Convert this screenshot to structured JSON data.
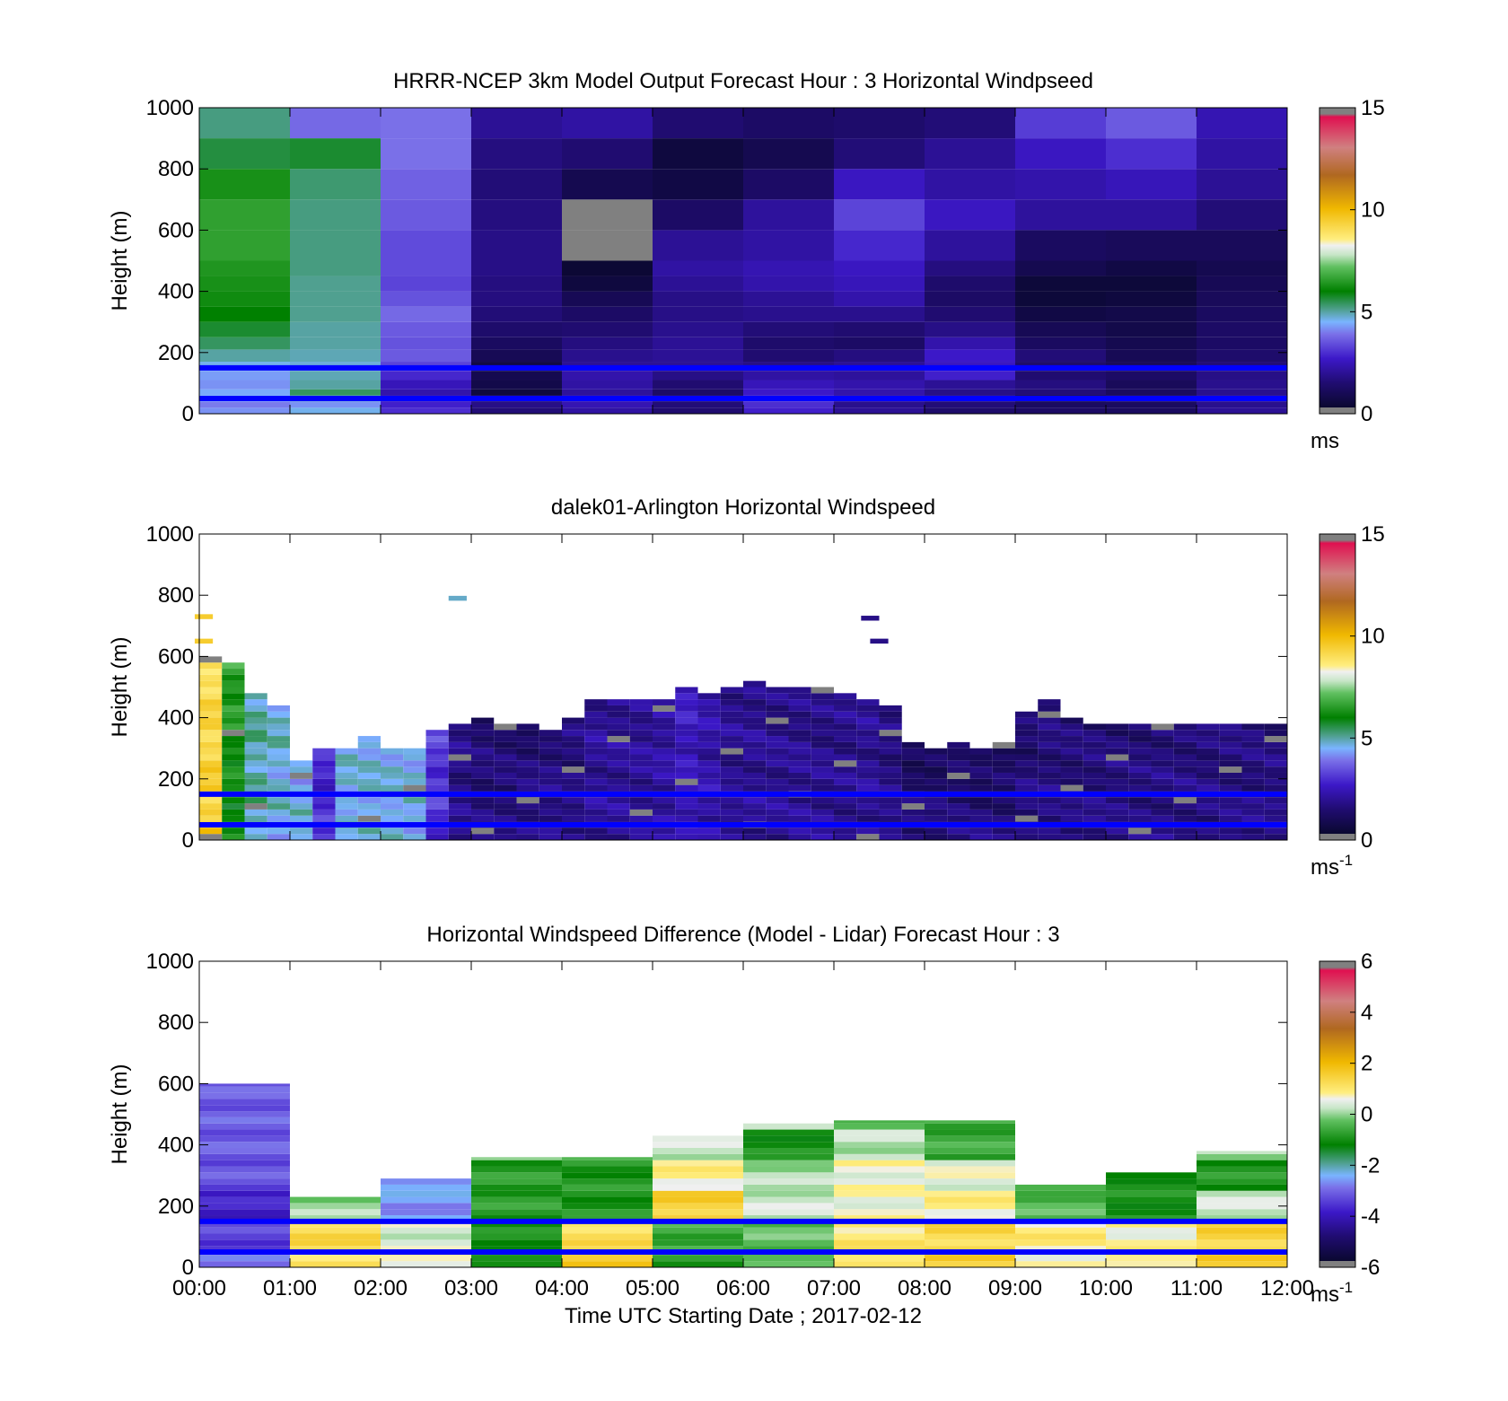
{
  "figure": {
    "xlabel": "Time UTC  Starting Date ; 2017-02-12",
    "x_tick_labels": [
      "00:00",
      "01:00",
      "02:00",
      "03:00",
      "04:00",
      "05:00",
      "06:00",
      "07:00",
      "08:00",
      "09:00",
      "10:00",
      "11:00",
      "12:00"
    ],
    "reference_lines_m": [
      150,
      50
    ],
    "reference_line_color": "#0000ff"
  },
  "chart_data": [
    {
      "type": "heatmap",
      "title": "HRRR-NCEP 3km Model Output   Forecast Hour : 3 Horizontal Windpseed",
      "ylabel": "Height (m)",
      "ylim": [
        0,
        1000
      ],
      "y_ticks": [
        0,
        200,
        400,
        600,
        800,
        1000
      ],
      "xlim": [
        0,
        12
      ],
      "colorbar": {
        "min": 0,
        "max": 15,
        "ticks": [
          0,
          5,
          10,
          15
        ],
        "unit": "ms",
        "unit_sup": ""
      },
      "x_bins_hours": [
        0,
        1,
        2,
        3,
        4,
        5,
        6,
        7,
        8,
        9,
        10,
        11,
        12
      ],
      "height_levels_m": [
        0,
        20,
        40,
        60,
        80,
        110,
        140,
        170,
        210,
        250,
        300,
        350,
        400,
        450,
        500,
        600,
        700,
        800,
        900,
        1000
      ],
      "values": [
        [
          4.2,
          4.6,
          3.0,
          1.6,
          2.2,
          1.5,
          2.8,
          2.0,
          1.4,
          1.3,
          1.2,
          2.0
        ],
        [
          4.0,
          4.2,
          2.8,
          1.8,
          2.4,
          1.6,
          3.0,
          1.9,
          1.6,
          1.2,
          1.2,
          1.9
        ],
        [
          4.5,
          4.8,
          2.4,
          1.2,
          2.3,
          1.4,
          3.1,
          2.2,
          1.9,
          0.4,
          1.3,
          2.0
        ],
        [
          4.4,
          5.4,
          2.3,
          0.6,
          2.1,
          1.3,
          2.7,
          2.3,
          1.8,
          1.6,
          1.2,
          1.9
        ],
        [
          4.2,
          5.0,
          2.5,
          0.8,
          2.2,
          1.5,
          2.5,
          2.3,
          2.0,
          1.7,
          1.1,
          1.9
        ],
        [
          4.3,
          4.9,
          2.9,
          0.9,
          2.3,
          1.8,
          2.2,
          2.1,
          2.8,
          1.5,
          1.3,
          1.8
        ],
        [
          4.6,
          4.7,
          3.3,
          0.7,
          2.0,
          2.0,
          1.8,
          2.0,
          2.6,
          1.4,
          1.1,
          1.6
        ],
        [
          5.0,
          4.9,
          3.6,
          1.0,
          1.9,
          2.0,
          1.5,
          1.7,
          2.7,
          1.6,
          1.0,
          1.4
        ],
        [
          5.4,
          5.0,
          3.5,
          1.2,
          1.7,
          2.0,
          1.4,
          1.3,
          2.3,
          1.2,
          0.9,
          1.3
        ],
        [
          5.7,
          5.0,
          3.6,
          1.4,
          1.5,
          1.9,
          1.6,
          1.5,
          1.8,
          1.0,
          0.8,
          1.3
        ],
        [
          6.0,
          5.1,
          3.8,
          1.6,
          1.3,
          1.8,
          1.9,
          1.9,
          1.5,
          0.7,
          0.8,
          1.2
        ],
        [
          6.2,
          5.1,
          3.5,
          1.7,
          1.0,
          1.8,
          2.0,
          2.3,
          1.3,
          0.5,
          0.6,
          1.1
        ],
        [
          6.3,
          5.1,
          3.3,
          1.7,
          0.6,
          2.0,
          2.3,
          2.5,
          1.4,
          0.5,
          0.5,
          1.0
        ],
        [
          6.4,
          5.2,
          3.4,
          1.8,
          0.4,
          2.2,
          2.4,
          2.6,
          1.7,
          0.9,
          0.7,
          0.9
        ],
        [
          6.6,
          5.2,
          3.4,
          1.8,
          0.0,
          2.0,
          2.2,
          2.9,
          2.1,
          1.2,
          1.1,
          1.1
        ],
        [
          6.6,
          5.2,
          3.6,
          1.7,
          0.3,
          1.3,
          2.1,
          3.3,
          2.6,
          2.1,
          2.1,
          1.6
        ],
        [
          6.3,
          5.3,
          3.7,
          1.6,
          0.9,
          0.7,
          1.3,
          2.6,
          2.2,
          2.3,
          2.5,
          2.0
        ],
        [
          5.6,
          5.7,
          3.9,
          1.7,
          1.5,
          0.6,
          0.9,
          1.6,
          2.0,
          2.6,
          3.0,
          2.2
        ],
        [
          5.2,
          3.8,
          3.9,
          2.0,
          2.2,
          1.5,
          1.3,
          1.4,
          1.6,
          3.2,
          3.6,
          2.4
        ]
      ]
    },
    {
      "type": "heatmap",
      "title": "dalek01-Arlington  Horizontal Windspeed",
      "ylabel": "Height (m)",
      "ylim": [
        0,
        1000
      ],
      "y_ticks": [
        0,
        200,
        400,
        600,
        800,
        1000
      ],
      "xlim": [
        0,
        12
      ],
      "colorbar": {
        "min": 0,
        "max": 15,
        "ticks": [
          0,
          5,
          10,
          15
        ],
        "unit": "ms",
        "unit_sup": "-1"
      },
      "x_bin_width_hours": 0.25,
      "range_gate_m": 20,
      "profile_top_m": [
        600,
        580,
        470,
        440,
        250,
        290,
        300,
        330,
        300,
        300,
        360,
        380,
        390,
        375,
        375,
        350,
        390,
        460,
        460,
        460,
        460,
        500,
        480,
        500,
        520,
        500,
        500,
        500,
        480,
        460,
        430,
        310,
        300,
        310,
        300,
        310,
        420,
        460,
        400,
        380,
        370,
        380,
        380,
        380,
        380,
        380,
        380,
        380
      ],
      "surface_speed_ms": [
        9.5,
        6.0,
        5.0,
        4.6,
        4.6,
        3.0,
        4.6,
        4.6,
        4.6,
        4.6,
        3.0,
        1.8,
        1.6,
        1.7,
        1.8,
        1.9,
        1.8,
        2.0,
        2.0,
        2.0,
        2.1,
        2.5,
        2.3,
        2.0,
        2.0,
        2.0,
        2.0,
        2.0,
        1.9,
        2.0,
        1.9,
        1.7,
        1.7,
        1.7,
        1.7,
        1.7,
        1.8,
        1.8,
        1.7,
        1.8,
        1.8,
        1.8,
        1.8,
        1.8,
        1.8,
        1.8,
        1.8,
        1.8
      ],
      "upper_speed_ms": [
        9.0,
        6.6,
        5.0,
        4.8,
        4.5,
        2.8,
        4.6,
        4.6,
        4.6,
        4.6,
        3.2,
        1.7,
        1.5,
        1.4,
        1.4,
        1.6,
        1.6,
        2.0,
        2.0,
        2.0,
        2.2,
        2.6,
        2.2,
        1.9,
        1.9,
        1.8,
        1.8,
        1.7,
        1.8,
        1.9,
        1.6,
        1.1,
        1.1,
        1.1,
        1.0,
        1.0,
        1.3,
        1.5,
        1.5,
        1.5,
        1.5,
        1.5,
        1.6,
        1.6,
        1.6,
        1.6,
        1.6,
        1.6
      ],
      "isolated_returns": [
        {
          "t_hours": 2.85,
          "height_m": 790,
          "speed_ms": 4.8
        },
        {
          "t_hours": 7.4,
          "height_m": 725,
          "speed_ms": 1.8
        },
        {
          "t_hours": 7.5,
          "height_m": 650,
          "speed_ms": 1.8
        },
        {
          "t_hours": 0.05,
          "height_m": 730,
          "speed_ms": 9.5
        },
        {
          "t_hours": 0.05,
          "height_m": 650,
          "speed_ms": 9.5
        }
      ]
    },
    {
      "type": "heatmap",
      "title": "Horizontal Windspeed Difference (Model - Lidar) Forecast Hour : 3",
      "ylabel": "Height (m)",
      "ylim": [
        0,
        1000
      ],
      "y_ticks": [
        0,
        200,
        400,
        600,
        800,
        1000
      ],
      "xlim": [
        0,
        12
      ],
      "colorbar": {
        "min": -6,
        "max": 6,
        "ticks": [
          -6,
          -4,
          -2,
          0,
          2,
          4,
          6
        ],
        "unit": "ms",
        "unit_sup": "-1"
      },
      "x_bins_hours": [
        0,
        1,
        2,
        3,
        4,
        5,
        6,
        7,
        8,
        9,
        10,
        11,
        12
      ],
      "profile_top_m": [
        600,
        230,
        290,
        360,
        360,
        430,
        470,
        480,
        480,
        270,
        310,
        380
      ],
      "layers": [
        {
          "from_m": 0,
          "to_m": 50,
          "values": [
            -3.0,
            1.0,
            0.8,
            -1.2,
            1.8,
            -0.8,
            -0.5,
            1.2,
            1.5,
            0.5,
            1.0,
            1.5
          ]
        },
        {
          "from_m": 50,
          "to_m": 150,
          "values": [
            -3.4,
            1.3,
            0.4,
            -1.0,
            1.2,
            -0.6,
            -0.3,
            1.0,
            1.3,
            0.9,
            0.7,
            1.4
          ]
        },
        {
          "from_m": 150,
          "to_m": 250,
          "values": [
            -3.8,
            0.0,
            -2.6,
            -0.8,
            -0.9,
            1.5,
            0.3,
            0.6,
            0.8,
            -0.4,
            -1.0,
            0.3
          ]
        },
        {
          "from_m": 250,
          "to_m": 350,
          "values": [
            -3.2,
            null,
            -2.4,
            -0.8,
            -0.9,
            0.8,
            0.1,
            0.6,
            0.5,
            -0.6,
            -1.0,
            -0.9
          ]
        },
        {
          "from_m": 350,
          "to_m": 450,
          "values": [
            -3.1,
            null,
            null,
            null,
            -0.6,
            0.3,
            -1.0,
            0.2,
            -0.6,
            null,
            null,
            null
          ]
        },
        {
          "from_m": 450,
          "to_m": 600,
          "values": [
            -3.1,
            null,
            null,
            null,
            null,
            null,
            null,
            -0.2,
            -0.7,
            null,
            null,
            null
          ]
        }
      ]
    }
  ]
}
